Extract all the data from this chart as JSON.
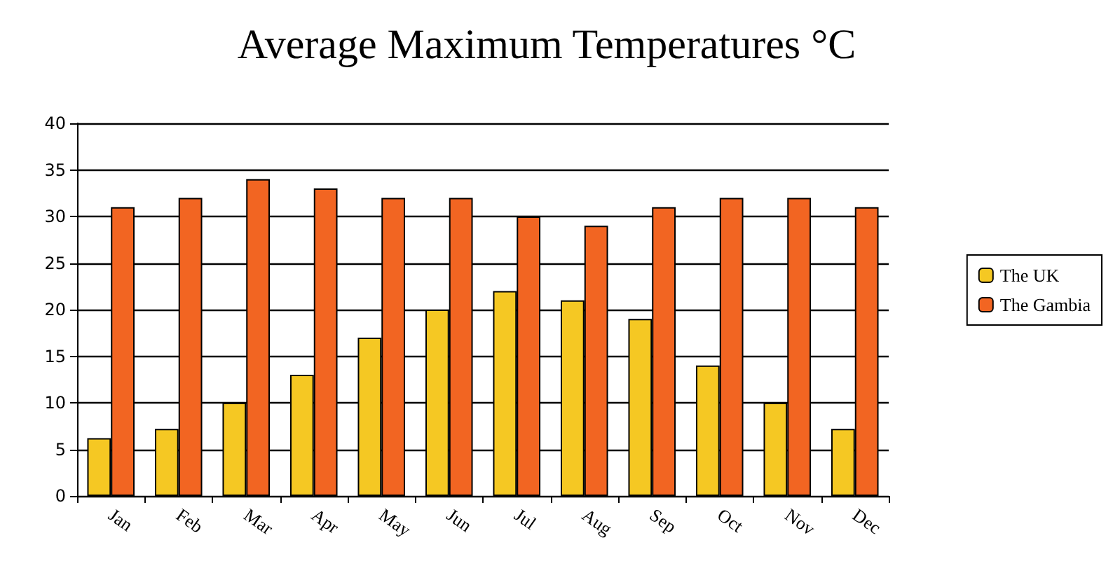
{
  "chart_data": {
    "type": "bar",
    "title": "Average Maximum Temperatures °C",
    "categories": [
      "Jan",
      "Feb",
      "Mar",
      "Apr",
      "May",
      "Jun",
      "Jul",
      "Aug",
      "Sep",
      "Oct",
      "Nov",
      "Dec"
    ],
    "series": [
      {
        "name": "The UK",
        "color": "#f5c823",
        "values": [
          6.2,
          7.2,
          10,
          13,
          17,
          20,
          22,
          21,
          19,
          14,
          10,
          7.2
        ]
      },
      {
        "name": "The Gambia",
        "color": "#f26522",
        "values": [
          31,
          32,
          34,
          33,
          32,
          32,
          30,
          29,
          31,
          32,
          32,
          31
        ]
      }
    ],
    "ylim": [
      0,
      40
    ],
    "yticks": [
      0,
      5,
      10,
      15,
      20,
      25,
      30,
      35,
      40
    ],
    "grid": "y",
    "legend": "right"
  }
}
